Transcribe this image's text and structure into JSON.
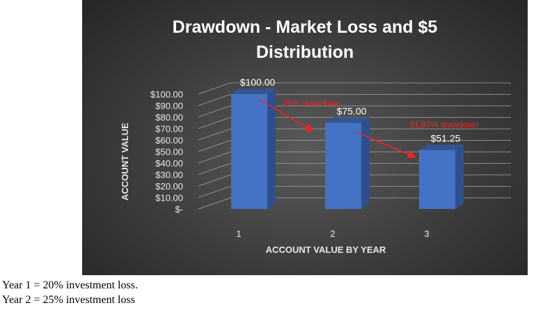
{
  "chart_data": {
    "type": "bar",
    "title_line1": "Drawdown - Market Loss and $5",
    "title_line2": "Distribution",
    "xlabel": "ACCOUNT VALUE BY YEAR",
    "ylabel": "ACCOUNT VALUE",
    "categories": [
      "1",
      "2",
      "3"
    ],
    "values": [
      100.0,
      75.0,
      51.25
    ],
    "value_labels": [
      "$100.00",
      "$75.00",
      "$51.25"
    ],
    "ylim": [
      0,
      100
    ],
    "yticks": [
      0,
      10,
      20,
      30,
      40,
      50,
      60,
      70,
      80,
      90,
      100
    ],
    "ytick_labels": [
      "$-",
      "$10.00",
      "$20.00",
      "$30.00",
      "$40.00",
      "$50.00",
      "$60.00",
      "$70.00",
      "$80.00",
      "$90.00",
      "$100.00"
    ],
    "grid": true,
    "three_d": true,
    "annotations": [
      {
        "text": "25% drawdown",
        "from_category": "1",
        "to_category": "2"
      },
      {
        "text": "31.67% drawdown",
        "from_category": "2",
        "to_category": "3"
      }
    ],
    "colors": {
      "bar_front": "#4472c4",
      "bar_side": "#2d4f8e",
      "bar_top": "#34558f",
      "annotation": "#ff2020",
      "text": "#ffffff",
      "axis_text": "#e8e8e8",
      "grid": "#a0a0a0"
    }
  },
  "captions": {
    "line1": "Year 1 = 20% investment loss.",
    "line2": "Year 2 = 25% investment loss"
  }
}
